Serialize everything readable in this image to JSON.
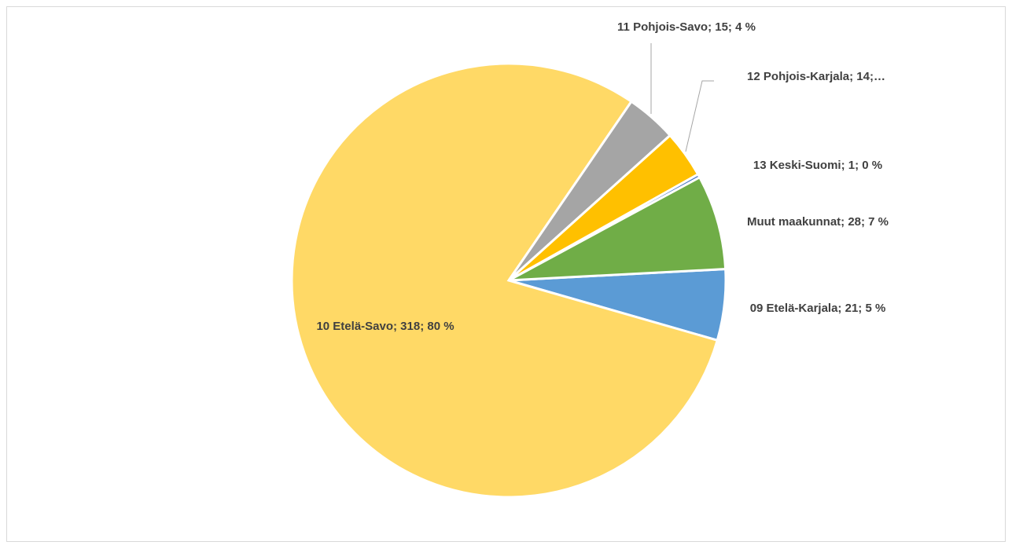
{
  "chart_data": {
    "type": "pie",
    "values": [
      21,
      318,
      15,
      14,
      1,
      28
    ],
    "value_labels": [
      "09 Etelä-Karjala; 21; 5 %",
      "10 Etelä-Savo; 318; 80 %",
      "11 Pohjois-Savo; 15; 4 %",
      "12 Pohjois-Karjala; 14;…",
      "13 Keski-Suomi; 1; 0 %",
      "Muut maakunnat; 28; 7 %"
    ],
    "colors": [
      "#5b9bd5",
      "#ffd966",
      "#a5a5a5",
      "#ffc000",
      "#4472c4",
      "#70ad47"
    ]
  }
}
